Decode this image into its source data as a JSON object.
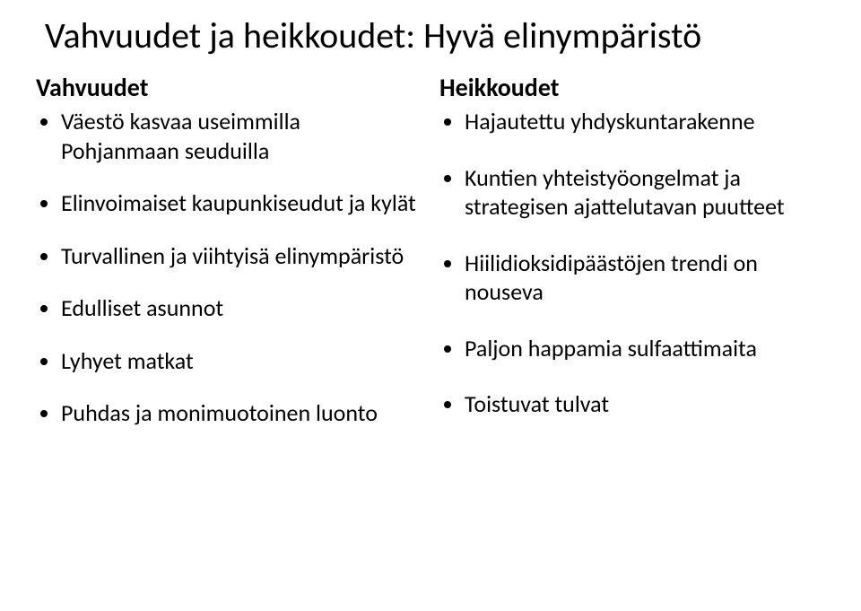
{
  "title": "Vahvuudet ja heikkoudet: Hyvä elinympäristö",
  "left": {
    "heading": "Vahvuudet",
    "items": [
      "Väestö kasvaa useimmilla Pohjanmaan seuduilla",
      "Elinvoimaiset kaupunkiseudut ja kylät",
      "Turvallinen ja viihtyisä elinympäristö",
      "Edulliset asunnot",
      "Lyhyet matkat",
      "Puhdas ja monimuotoinen luonto"
    ]
  },
  "right": {
    "heading": "Heikkoudet",
    "items": [
      "Hajautettu yhdyskuntarakenne",
      "Kuntien yhteistyöongelmat ja strategisen ajattelutavan puutteet",
      "Hiilidioksidipäästöjen trendi on nouseva",
      "Paljon happamia sulfaattimaita",
      "Toistuvat tulvat"
    ]
  }
}
